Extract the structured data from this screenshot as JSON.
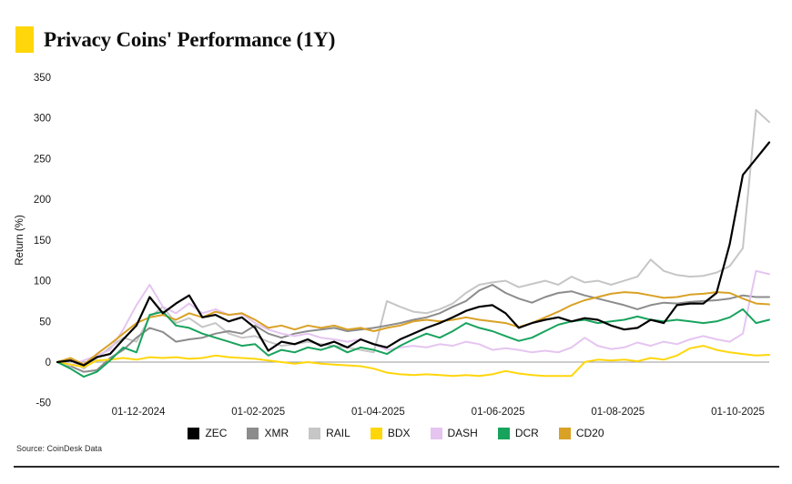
{
  "header": {
    "title": "Privacy Coins' Performance (1Y)",
    "accent_color": "#FFD60A"
  },
  "source": {
    "label": "Source: CoinDesk Data"
  },
  "chart_data": {
    "type": "line",
    "title": "Privacy Coins' Performance (1Y)",
    "xlabel": "",
    "ylabel": "Return (%)",
    "ylim": [
      -50,
      350
    ],
    "yticks": [
      350,
      300,
      250,
      200,
      150,
      100,
      50,
      0,
      -50
    ],
    "grid": false,
    "zero_baseline": true,
    "legend_position": "bottom",
    "x_tick_labels": [
      "01-12-2024",
      "01-02-2025",
      "01-04-2025",
      "01-06-2025",
      "01-08-2025",
      "01-10-2025"
    ],
    "sampling": "weekly",
    "series": [
      {
        "name": "ZEC",
        "color": "#000000",
        "values": [
          0,
          2,
          -4,
          6,
          10,
          28,
          45,
          80,
          60,
          72,
          82,
          55,
          58,
          50,
          55,
          42,
          14,
          25,
          22,
          28,
          20,
          25,
          18,
          28,
          22,
          18,
          28,
          35,
          42,
          48,
          55,
          63,
          68,
          70,
          60,
          42,
          48,
          52,
          55,
          50,
          54,
          52,
          45,
          40,
          42,
          52,
          48,
          70,
          72,
          72,
          85,
          145,
          230,
          250,
          270
        ]
      },
      {
        "name": "XMR",
        "color": "#8c8c8c",
        "values": [
          0,
          -5,
          -12,
          -10,
          5,
          15,
          30,
          42,
          37,
          25,
          28,
          30,
          35,
          38,
          35,
          45,
          35,
          30,
          35,
          38,
          40,
          42,
          38,
          40,
          42,
          45,
          48,
          52,
          55,
          60,
          68,
          75,
          88,
          95,
          85,
          78,
          73,
          80,
          85,
          87,
          82,
          78,
          74,
          70,
          65,
          70,
          73,
          72,
          74,
          75,
          76,
          78,
          82,
          80,
          80
        ]
      },
      {
        "name": "RAIL",
        "color": "#c6c6c6",
        "values": [
          0,
          3,
          -8,
          5,
          18,
          30,
          25,
          55,
          68,
          48,
          54,
          43,
          48,
          35,
          30,
          32,
          25,
          20,
          22,
          25,
          22,
          20,
          18,
          15,
          12,
          75,
          68,
          62,
          60,
          65,
          72,
          85,
          95,
          98,
          100,
          92,
          96,
          100,
          95,
          105,
          98,
          100,
          95,
          100,
          105,
          126,
          112,
          107,
          105,
          106,
          110,
          118,
          140,
          310,
          295
        ]
      },
      {
        "name": "BDX",
        "color": "#FFD60A",
        "values": [
          0,
          -3,
          -6,
          2,
          3,
          5,
          3,
          6,
          5,
          6,
          4,
          5,
          8,
          6,
          5,
          4,
          2,
          0,
          -2,
          0,
          -2,
          -3,
          -4,
          -5,
          -8,
          -13,
          -15,
          -16,
          -15,
          -16,
          -17,
          -16,
          -17,
          -15,
          -11,
          -14,
          -16,
          -17,
          -17,
          -17,
          0,
          3,
          2,
          3,
          1,
          5,
          3,
          8,
          17,
          20,
          15,
          12,
          10,
          8,
          9
        ]
      },
      {
        "name": "DASH",
        "color": "#E5C5F0",
        "values": [
          0,
          -4,
          2,
          8,
          15,
          40,
          70,
          95,
          68,
          60,
          72,
          60,
          65,
          58,
          59,
          48,
          40,
          35,
          32,
          35,
          30,
          28,
          25,
          28,
          22,
          15,
          18,
          20,
          18,
          22,
          20,
          25,
          22,
          15,
          17,
          15,
          12,
          14,
          12,
          18,
          30,
          20,
          16,
          18,
          24,
          20,
          25,
          22,
          28,
          32,
          28,
          25,
          35,
          112,
          108
        ]
      },
      {
        "name": "DCR",
        "color": "#18A35D",
        "values": [
          0,
          -8,
          -18,
          -12,
          2,
          18,
          12,
          58,
          62,
          45,
          42,
          35,
          30,
          25,
          20,
          22,
          8,
          15,
          12,
          18,
          15,
          20,
          12,
          18,
          15,
          10,
          20,
          28,
          35,
          30,
          38,
          48,
          42,
          38,
          32,
          26,
          30,
          38,
          46,
          50,
          52,
          48,
          50,
          52,
          56,
          52,
          50,
          52,
          50,
          48,
          50,
          55,
          65,
          48,
          52
        ]
      },
      {
        "name": "CD20",
        "color": "#D9A125",
        "values": [
          0,
          5,
          -3,
          10,
          22,
          35,
          48,
          55,
          58,
          52,
          60,
          55,
          62,
          58,
          60,
          52,
          42,
          45,
          40,
          45,
          42,
          45,
          40,
          42,
          38,
          42,
          45,
          50,
          52,
          50,
          52,
          55,
          52,
          50,
          48,
          43,
          48,
          55,
          62,
          70,
          76,
          80,
          84,
          86,
          85,
          82,
          79,
          80,
          83,
          84,
          86,
          85,
          78,
          72,
          71
        ]
      }
    ]
  }
}
